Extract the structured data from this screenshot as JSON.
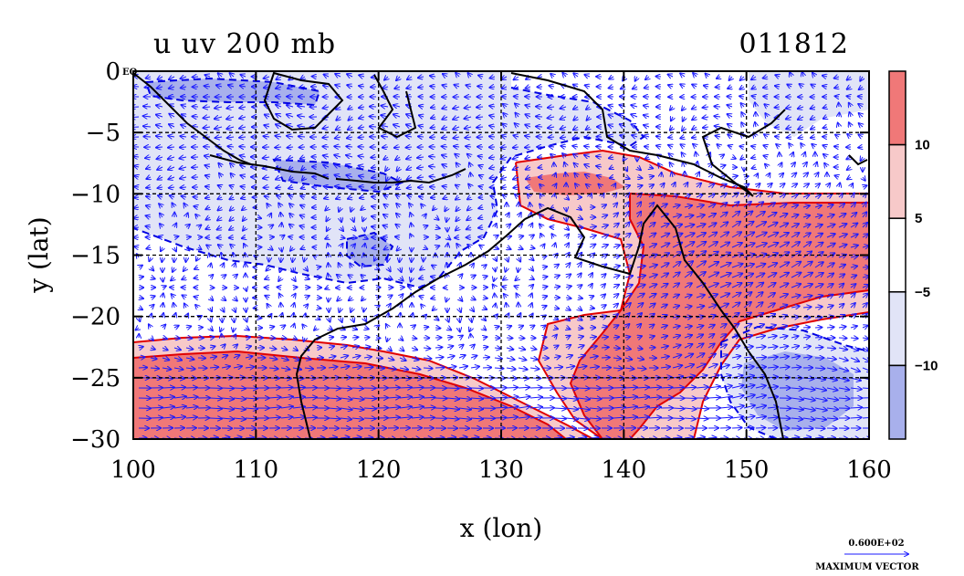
{
  "figure": {
    "title_left": "u uv 200 mb",
    "title_right": "011812",
    "xlabel": "x (lon)",
    "ylabel": "y (lat)",
    "eq_label": "EQ"
  },
  "colors": {
    "strong_pos": "#f07878",
    "weak_pos": "#f7c9c9",
    "neutral": "#ffffff",
    "weak_neg": "#e1e4f7",
    "strong_neg": "#a8b0ec",
    "pos_contour": "#e00000",
    "neg_contour": "#0000e0",
    "vector": "#1a1aff",
    "coast": "#000000"
  },
  "chart_data": {
    "type": "heatmap",
    "variable": "u wind with uv vectors at 200 mb",
    "x_ticks": [
      "100",
      "110",
      "120",
      "130",
      "140",
      "150",
      "160"
    ],
    "y_ticks": [
      "0",
      "−5",
      "−10",
      "−15",
      "−20",
      "−25",
      "−30"
    ],
    "xlim": [
      100,
      160
    ],
    "ylim": [
      -30,
      0
    ],
    "grid": true,
    "colorbar": {
      "ticks": [
        "10",
        "5",
        "−5",
        "−10"
      ],
      "levels": [
        -15,
        -10,
        -5,
        5,
        10,
        15
      ]
    },
    "vector_reference": {
      "label": "0.600E+02",
      "caption": "MAXIMUM VECTOR"
    }
  }
}
